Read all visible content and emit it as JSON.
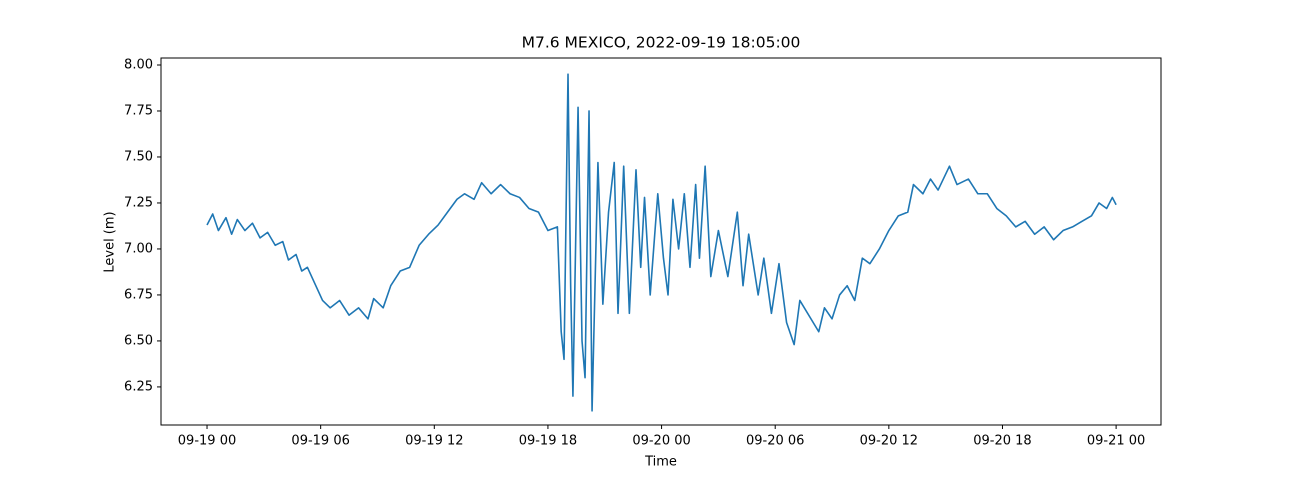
{
  "chart_data": {
    "type": "line",
    "title": "M7.6 MEXICO, 2022-09-19 18:05:00",
    "x_label": "Time",
    "y_label": "Level (m)",
    "color": "#1f77b4",
    "grid": false,
    "xlim": [
      -2.43,
      50.37
    ],
    "ylim": [
      6.043,
      8.038
    ],
    "xticks": [
      {
        "value": 0,
        "label": "09-19 00"
      },
      {
        "value": 6,
        "label": "09-19 06"
      },
      {
        "value": 12,
        "label": "09-19 12"
      },
      {
        "value": 18,
        "label": "09-19 18"
      },
      {
        "value": 24,
        "label": "09-20 00"
      },
      {
        "value": 30,
        "label": "09-20 06"
      },
      {
        "value": 36,
        "label": "09-20 12"
      },
      {
        "value": 42,
        "label": "09-20 18"
      },
      {
        "value": 48,
        "label": "09-21 00"
      }
    ],
    "yticks": [
      6.25,
      {
        "value": 6.5,
        "label": "6.50"
      },
      6.75,
      {
        "value": 7,
        "label": "7.00"
      },
      7.25,
      {
        "value": 7.5,
        "label": "7.50"
      },
      7.75,
      {
        "value": 8,
        "label": "8.00"
      }
    ],
    "x": [
      0,
      0.3,
      0.6,
      1,
      1.3,
      1.6,
      2,
      2.4,
      2.8,
      3.2,
      3.6,
      4,
      4.3,
      4.7,
      5,
      5.3,
      6.1,
      6.5,
      7,
      7.5,
      8,
      8.5,
      8.8,
      9.3,
      9.7,
      10.2,
      10.7,
      11.2,
      11.7,
      12.2,
      12.7,
      13.2,
      13.6,
      14.1,
      14.5,
      15,
      15.5,
      16,
      16.5,
      17,
      17.5,
      18,
      18.5,
      18.7,
      18.85,
      19.06,
      19.2,
      19.32,
      19.59,
      19.8,
      19.96,
      20.17,
      20.33,
      20.64,
      20.9,
      21.2,
      21.5,
      21.7,
      22.0,
      22.3,
      22.65,
      22.9,
      23.1,
      23.4,
      23.8,
      24.1,
      24.34,
      24.6,
      24.9,
      25.2,
      25.5,
      25.8,
      26.0,
      26.3,
      26.6,
      27.0,
      27.5,
      28.0,
      28.3,
      28.6,
      29.1,
      29.4,
      29.8,
      30.2,
      30.6,
      31.0,
      31.3,
      32.3,
      32.6,
      33.0,
      33.4,
      33.8,
      34.2,
      34.6,
      35.0,
      35.5,
      36,
      36.5,
      37,
      37.3,
      37.8,
      38.2,
      38.6,
      39.2,
      39.6,
      40.2,
      40.7,
      41.2,
      41.7,
      42.2,
      42.7,
      43.2,
      43.7,
      44.2,
      44.7,
      45.2,
      45.7,
      46.2,
      46.7,
      47.1,
      47.5,
      47.8,
      48
    ],
    "values": [
      7.13,
      7.19,
      7.1,
      7.17,
      7.08,
      7.16,
      7.1,
      7.14,
      7.06,
      7.09,
      7.02,
      7.04,
      6.94,
      6.97,
      6.88,
      6.9,
      6.72,
      6.68,
      6.72,
      6.64,
      6.68,
      6.62,
      6.73,
      6.68,
      6.8,
      6.88,
      6.9,
      7.02,
      7.08,
      7.13,
      7.2,
      7.27,
      7.3,
      7.27,
      7.36,
      7.3,
      7.35,
      7.3,
      7.28,
      7.22,
      7.2,
      7.1,
      7.12,
      6.55,
      6.4,
      7.95,
      6.8,
      6.2,
      7.77,
      6.5,
      6.3,
      7.75,
      6.12,
      7.47,
      6.7,
      7.2,
      7.47,
      6.65,
      7.45,
      6.65,
      7.43,
      6.9,
      7.28,
      6.75,
      7.3,
      6.95,
      6.75,
      7.27,
      7.0,
      7.3,
      6.9,
      7.35,
      6.95,
      7.45,
      6.85,
      7.1,
      6.85,
      7.2,
      6.8,
      7.08,
      6.75,
      6.95,
      6.65,
      6.92,
      6.6,
      6.48,
      6.72,
      6.55,
      6.68,
      6.62,
      6.75,
      6.8,
      6.72,
      6.95,
      6.92,
      7.0,
      7.1,
      7.18,
      7.2,
      7.35,
      7.3,
      7.38,
      7.32,
      7.45,
      7.35,
      7.38,
      7.3,
      7.3,
      7.22,
      7.18,
      7.12,
      7.15,
      7.08,
      7.12,
      7.05,
      7.1,
      7.12,
      7.15,
      7.18,
      7.25,
      7.22,
      7.28,
      7.24
    ]
  }
}
